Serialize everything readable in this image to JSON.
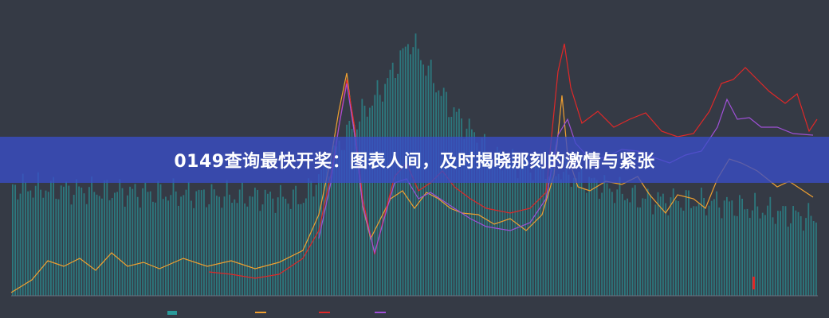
{
  "headline": "0149查询最快开奖：图表人间，及时揭晓那刻的激情与紧张"
}
